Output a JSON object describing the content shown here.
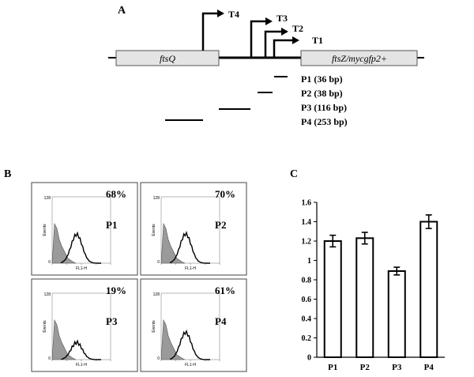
{
  "panel_a": {
    "letter": "A",
    "genes": [
      {
        "id": "ftsq",
        "label": "ftsQ"
      },
      {
        "id": "ftsz",
        "label": "ftsZ/mycgfp2+"
      }
    ],
    "transcription_starts": [
      "T4",
      "T3",
      "T2",
      "T1"
    ],
    "probes": [
      "P1 (36 bp)",
      "P2 (38 bp)",
      "P3 (116 bp)",
      "P4 (253 bp)"
    ]
  },
  "panel_b": {
    "letter": "B",
    "histograms": [
      {
        "name": "P1",
        "percent": "68%"
      },
      {
        "name": "P2",
        "percent": "70%"
      },
      {
        "name": "P3",
        "percent": "19%"
      },
      {
        "name": "P4",
        "percent": "61%"
      }
    ],
    "axis_text": {
      "y_label": "Events",
      "x_label": "FL1-H",
      "y_max": "128",
      "y_min": "0"
    }
  },
  "panel_c": {
    "letter": "C"
  },
  "chart_data": {
    "type": "bar",
    "title": "",
    "xlabel": "",
    "ylabel": "",
    "categories": [
      "P1",
      "P2",
      "P3",
      "P4"
    ],
    "values": [
      1.2,
      1.23,
      0.89,
      1.4
    ],
    "errors": [
      0.06,
      0.06,
      0.04,
      0.07
    ],
    "ylim": [
      0,
      1.6
    ],
    "yticks": [
      "0",
      "0.2",
      "0.4",
      "0.6",
      "0.8",
      "1",
      "1.2",
      "1.4",
      "1.6"
    ],
    "grid": false
  }
}
